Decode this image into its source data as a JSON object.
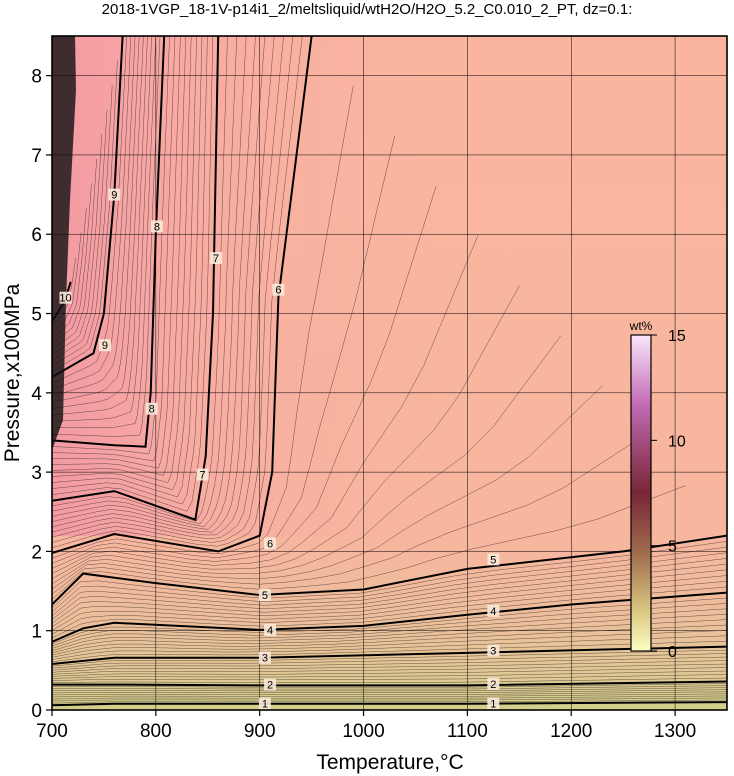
{
  "chart_data": {
    "type": "contour",
    "title": "2018-1VGP_18-1V-p14i1_2/meltsliquid/wtH2O/H2O_5.2_C0.010_2_PT, dz=0.1:",
    "xlabel": "Temperature,°C",
    "ylabel": "Pressure,x100MPa",
    "xlim": [
      700,
      1350
    ],
    "ylim": [
      0,
      8.5
    ],
    "x_ticks": [
      700,
      800,
      900,
      1000,
      1100,
      1200,
      1300
    ],
    "x_tick_labels": [
      "700",
      "800",
      "900",
      "1000",
      "1100",
      "1200",
      "1300"
    ],
    "y_ticks": [
      0,
      1,
      2,
      3,
      4,
      5,
      6,
      7,
      8
    ],
    "y_tick_labels": [
      "0",
      "1",
      "2",
      "3",
      "4",
      "5",
      "6",
      "7",
      "8"
    ],
    "grid": true,
    "contour_interval": 0.1,
    "colorbar": {
      "label": "wt%",
      "range": [
        0,
        15
      ],
      "ticks": [
        0,
        5,
        10,
        15
      ],
      "tick_labels": [
        "0",
        "5",
        "10",
        "15"
      ],
      "colors": [
        "#fdfdc6",
        "#dccc84",
        "#a37050",
        "#782636",
        "#c26ab4",
        "#fbe6fb"
      ],
      "placement": "right-inside"
    },
    "contours": [
      {
        "level": 1,
        "points": [
          [
            700,
            0.06
          ],
          [
            760,
            0.08
          ],
          [
            900,
            0.08
          ],
          [
            1100,
            0.08
          ],
          [
            1350,
            0.1
          ]
        ],
        "labels": [
          [
            905,
            0.08
          ],
          [
            1125,
            0.08
          ]
        ]
      },
      {
        "level": 2,
        "points": [
          [
            700,
            0.32
          ],
          [
            760,
            0.32
          ],
          [
            900,
            0.31
          ],
          [
            1100,
            0.31
          ],
          [
            1350,
            0.36
          ]
        ],
        "labels": [
          [
            910,
            0.32
          ],
          [
            1125,
            0.33
          ]
        ]
      },
      {
        "level": 3,
        "points": [
          [
            700,
            0.58
          ],
          [
            760,
            0.66
          ],
          [
            900,
            0.66
          ],
          [
            1100,
            0.72
          ],
          [
            1350,
            0.8
          ]
        ],
        "labels": [
          [
            905,
            0.66
          ],
          [
            1125,
            0.75
          ]
        ]
      },
      {
        "level": 4,
        "points": [
          [
            700,
            0.86
          ],
          [
            730,
            1.03
          ],
          [
            760,
            1.1
          ],
          [
            900,
            1.01
          ],
          [
            1000,
            1.06
          ],
          [
            1100,
            1.2
          ],
          [
            1200,
            1.33
          ],
          [
            1350,
            1.48
          ]
        ],
        "labels": [
          [
            910,
            1.01
          ],
          [
            1125,
            1.25
          ]
        ]
      },
      {
        "level": 5,
        "points": [
          [
            700,
            1.33
          ],
          [
            730,
            1.72
          ],
          [
            800,
            1.6
          ],
          [
            900,
            1.45
          ],
          [
            1000,
            1.52
          ],
          [
            1100,
            1.78
          ],
          [
            1250,
            2.0
          ],
          [
            1350,
            2.2
          ]
        ],
        "labels": [
          [
            905,
            1.45
          ],
          [
            1125,
            1.9
          ]
        ]
      },
      {
        "level": 6,
        "points": [
          [
            700,
            1.98
          ],
          [
            760,
            2.22
          ],
          [
            860,
            2.0
          ],
          [
            900,
            2.2
          ],
          [
            912,
            3.0
          ],
          [
            918,
            5.2
          ],
          [
            950,
            8.5
          ]
        ],
        "labels": [
          [
            910,
            2.1
          ],
          [
            918,
            5.3
          ]
        ]
      },
      {
        "level": 7,
        "points": [
          [
            700,
            2.64
          ],
          [
            760,
            2.76
          ],
          [
            838,
            2.4
          ],
          [
            848,
            3.2
          ],
          [
            855,
            5.0
          ],
          [
            860,
            8.5
          ]
        ],
        "labels": [
          [
            845,
            2.97
          ],
          [
            858,
            5.7
          ]
        ]
      },
      {
        "level": 8,
        "points": [
          [
            700,
            3.4
          ],
          [
            760,
            3.34
          ],
          [
            790,
            3.32
          ],
          [
            795,
            4.0
          ],
          [
            800,
            6.0
          ],
          [
            808,
            8.5
          ]
        ],
        "labels": [
          [
            796,
            3.8
          ],
          [
            801,
            6.1
          ]
        ]
      },
      {
        "level": 9,
        "points": [
          [
            700,
            4.2
          ],
          [
            740,
            4.5
          ],
          [
            750,
            5.0
          ],
          [
            760,
            6.5
          ],
          [
            768,
            8.5
          ]
        ],
        "labels": [
          [
            751,
            4.6
          ],
          [
            760,
            6.5
          ]
        ]
      },
      {
        "level": 10,
        "points": [
          [
            700,
            4.9
          ],
          [
            712,
            5.15
          ],
          [
            718,
            5.4
          ]
        ],
        "labels": [
          [
            713,
            5.2
          ]
        ]
      }
    ]
  }
}
